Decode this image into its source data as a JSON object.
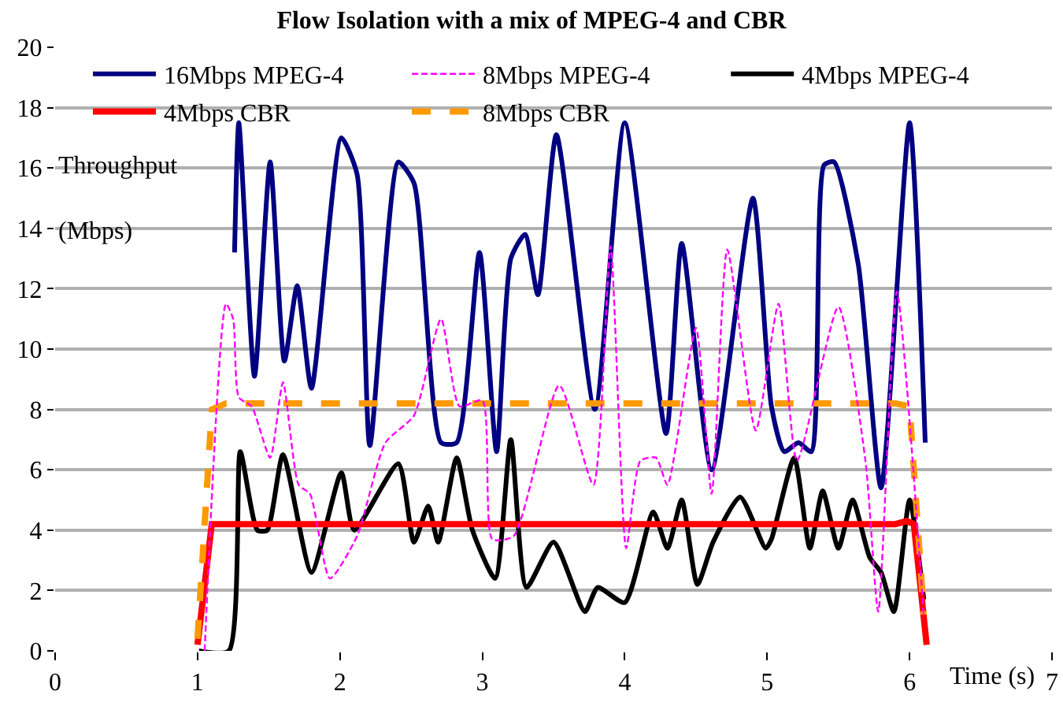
{
  "chart_data": {
    "type": "line",
    "title": "Flow Isolation with a mix of MPEG-4 and CBR",
    "xlabel": "Time (s)",
    "ylabel": "Throughput (Mbps)",
    "xlim": [
      0,
      7
    ],
    "xticks": [
      0,
      1,
      2,
      3,
      4,
      5,
      6,
      7
    ],
    "ylim": [
      0,
      20
    ],
    "yticks": [
      0,
      2,
      4,
      6,
      8,
      10,
      12,
      14,
      16,
      18,
      20
    ],
    "grid": "y",
    "legend": "top",
    "marker": "none",
    "series": [
      {
        "name": "16Mbps MPEG-4",
        "color": "#000080",
        "line_style": "solid",
        "x": [
          1.26,
          1.29,
          1.4,
          1.51,
          1.61,
          1.7,
          1.8,
          2.01,
          2.12,
          2.21,
          2.41,
          2.52,
          2.71,
          2.82,
          2.98,
          3.1,
          3.2,
          3.3,
          3.39,
          3.52,
          3.79,
          4.0,
          4.29,
          4.4,
          4.61,
          4.9,
          5.03,
          5.12,
          5.22,
          5.31,
          5.4,
          5.47,
          5.64,
          5.8,
          6.0,
          6.11
        ],
        "values": [
          13.2,
          17.5,
          9.1,
          16.2,
          9.6,
          12.1,
          8.7,
          17.0,
          15.8,
          6.8,
          16.2,
          15.5,
          6.9,
          6.9,
          13.2,
          6.6,
          13,
          13.8,
          11.8,
          17.1,
          8.0,
          17.5,
          7.2,
          13.5,
          6.0,
          15,
          8.1,
          6.6,
          6.9,
          6.6,
          16.1,
          16.2,
          12.8,
          5.4,
          17.5,
          6.9
        ]
      },
      {
        "name": "8Mbps MPEG-4",
        "color": "#ff00ff",
        "line_style": "dashed",
        "x": [
          1.05,
          1.2,
          1.25,
          1.29,
          1.38,
          1.51,
          1.6,
          1.71,
          1.79,
          1.93,
          2.12,
          2.32,
          2.52,
          2.71,
          2.84,
          3.0,
          3.07,
          3.22,
          3.54,
          3.78,
          3.9,
          4.01,
          4.11,
          4.22,
          4.3,
          4.5,
          4.61,
          4.72,
          4.92,
          5.08,
          5.21,
          5.5,
          5.69,
          5.78,
          5.91,
          6.1
        ],
        "values": [
          0,
          11.5,
          11,
          8.4,
          8.1,
          6.4,
          8.9,
          5.5,
          5.2,
          2.4,
          3.8,
          6.9,
          7.8,
          11.0,
          8.1,
          8.3,
          3.7,
          3.8,
          8.8,
          5.5,
          13.4,
          3.4,
          6.3,
          6.4,
          5.5,
          10.7,
          5.2,
          13.3,
          7.3,
          11.5,
          6.3,
          11.4,
          6.3,
          1.3,
          11.9,
          1.1
        ]
      },
      {
        "name": "4Mbps MPEG-4",
        "color": "#000000",
        "line_style": "solid",
        "x": [
          1.01,
          1.22,
          1.3,
          1.42,
          1.49,
          1.6,
          1.8,
          2.01,
          2.1,
          2.41,
          2.52,
          2.62,
          2.69,
          2.82,
          2.93,
          3.09,
          3.2,
          3.31,
          3.5,
          3.72,
          3.81,
          4.0,
          4.2,
          4.3,
          4.4,
          4.51,
          4.62,
          4.81,
          4.99,
          5.03,
          5.19,
          5.3,
          5.39,
          5.5,
          5.6,
          5.72,
          5.8,
          5.89,
          6.0,
          6.1
        ],
        "values": [
          0,
          0,
          6.6,
          4.0,
          4.0,
          6.5,
          2.6,
          5.9,
          4.0,
          6.2,
          3.6,
          4.8,
          3.6,
          6.4,
          4.0,
          2.4,
          7.0,
          2.1,
          3.6,
          1.3,
          2.1,
          1.6,
          4.6,
          3.4,
          5.0,
          2.2,
          3.6,
          5.1,
          3.4,
          3.7,
          6.4,
          3.4,
          5.3,
          3.4,
          5.0,
          3.1,
          2.6,
          1.3,
          5.0,
          1.7
        ]
      },
      {
        "name": "4Mbps CBR",
        "color": "#ff0000",
        "line_style": "solid",
        "x": [
          1.0,
          1.1,
          5.9,
          5.98,
          6.03,
          6.12
        ],
        "values": [
          0.2,
          4.2,
          4.2,
          4.3,
          4.2,
          0.2
        ]
      },
      {
        "name": "8Mbps CBR",
        "color": "#ff9900",
        "line_style": "dashed",
        "x": [
          1.0,
          1.1,
          1.2,
          5.9,
          6.0,
          6.1
        ],
        "values": [
          0.4,
          8.0,
          8.2,
          8.2,
          8.1,
          1.2
        ]
      }
    ]
  }
}
